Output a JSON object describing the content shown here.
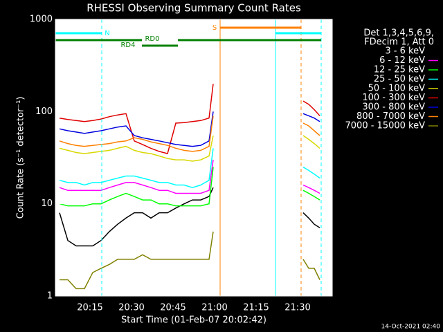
{
  "chart_data": {
    "type": "line",
    "title": "RHESSI Observing Summary Count Rates",
    "xlabel": "Start Time (01-Feb-07 20:02:42)",
    "ylabel": "Count Rate (s⁻¹ detector⁻¹)",
    "footer": "14-Oct-2021 02:40",
    "legend_title": [
      "Det 1,3,4,5,6,9,",
      "FDecim 1, Att 0"
    ],
    "yscale": "log",
    "xlim": [
      1202.5,
      1302.5
    ],
    "ylim": [
      1,
      1000
    ],
    "xticks": [
      {
        "value": 1215,
        "label": "20:15"
      },
      {
        "value": 1230,
        "label": "20:30"
      },
      {
        "value": 1245,
        "label": "20:45"
      },
      {
        "value": 1260,
        "label": "21:00"
      },
      {
        "value": 1275,
        "label": "21:15"
      },
      {
        "value": 1290,
        "label": "21:30"
      }
    ],
    "yticks": [
      1,
      10,
      100,
      1000
    ],
    "x": [
      1204,
      1207,
      1210,
      1213,
      1216,
      1219,
      1222,
      1225,
      1228,
      1231,
      1234,
      1237,
      1240,
      1243,
      1246,
      1249,
      1252,
      1255,
      1258,
      1259.5,
      1275,
      1292,
      1294,
      1296,
      1298
    ],
    "series": [
      {
        "name": "3 - 6 keV",
        "color": "#000000",
        "values": [
          8,
          4,
          3.5,
          3.5,
          3.5,
          4,
          5,
          6,
          7,
          8,
          8,
          7,
          8,
          8,
          9,
          10,
          11,
          11,
          12,
          15,
          null,
          8,
          7,
          6,
          5.5
        ]
      },
      {
        "name": "6 - 12 keV",
        "color": "#ff00ff",
        "values": [
          15,
          14,
          14,
          14,
          14,
          14,
          15,
          16,
          17,
          17,
          16,
          15,
          14,
          14,
          13,
          13,
          13,
          13,
          14,
          30,
          null,
          16,
          15,
          14,
          13
        ]
      },
      {
        "name": "12 - 25 keV",
        "color": "#00ff00",
        "values": [
          10,
          9.5,
          9.5,
          9.5,
          10,
          10,
          11,
          12,
          13,
          12,
          11,
          11,
          10,
          10,
          9.5,
          9.5,
          9.5,
          9.5,
          10,
          25,
          null,
          14,
          13,
          12,
          11
        ]
      },
      {
        "name": "25 - 50 keV",
        "color": "#00ffff",
        "values": [
          18,
          17,
          17,
          16,
          17,
          17,
          18,
          19,
          20,
          20,
          19,
          18,
          17,
          17,
          16,
          16,
          15,
          16,
          18,
          40,
          null,
          25,
          23,
          21,
          19
        ]
      },
      {
        "name": "50 - 100 keV",
        "color": "#d8d800",
        "values": [
          40,
          38,
          36,
          35,
          36,
          37,
          38,
          40,
          42,
          38,
          36,
          35,
          33,
          31,
          30,
          30,
          29,
          30,
          33,
          55,
          null,
          55,
          50,
          45,
          40
        ]
      },
      {
        "name": "100 - 300 keV",
        "color": "#e00000",
        "values": [
          85,
          82,
          80,
          78,
          80,
          83,
          88,
          92,
          95,
          48,
          44,
          40,
          37,
          35,
          75,
          76,
          78,
          80,
          85,
          200,
          null,
          130,
          120,
          105,
          90
        ]
      },
      {
        "name": "300 - 800 keV",
        "color": "#0000e0",
        "values": [
          65,
          62,
          60,
          58,
          60,
          62,
          65,
          68,
          70,
          55,
          52,
          50,
          48,
          46,
          44,
          43,
          42,
          43,
          48,
          100,
          null,
          95,
          90,
          85,
          78
        ]
      },
      {
        "name": "800 - 7000 keV",
        "color": "#ff8000",
        "values": [
          48,
          45,
          43,
          42,
          43,
          44,
          45,
          47,
          48,
          52,
          50,
          47,
          45,
          43,
          40,
          38,
          37,
          38,
          42,
          90,
          null,
          75,
          70,
          62,
          55
        ]
      },
      {
        "name": "7000 - 15000 keV",
        "color": "#808000",
        "values": [
          1.5,
          1.5,
          1.2,
          1.2,
          1.8,
          2,
          2.2,
          2.5,
          2.5,
          2.5,
          2.8,
          2.5,
          2.5,
          2.5,
          2.5,
          2.5,
          2.5,
          2.5,
          2.5,
          5,
          null,
          2.5,
          2,
          2,
          1.5
        ]
      }
    ],
    "vlines": [
      {
        "x": 1219.25,
        "color": "#00ffff",
        "dashed": true
      },
      {
        "x": 1282,
        "color": "#00ffff",
        "dashed": false
      },
      {
        "x": 1298.5,
        "color": "#00ffff",
        "dashed": true
      },
      {
        "x": 1262,
        "color": "#ff8000",
        "dashed": false
      },
      {
        "x": 1291.25,
        "color": "#ff8000",
        "dashed": true
      }
    ],
    "intervals": [
      {
        "label": "N",
        "x": [
          1202.5,
          1219.25
        ],
        "color": "#00ffff",
        "row": 1
      },
      {
        "x": [
          1282,
          1298.5
        ],
        "color": "#00ffff",
        "row": 1
      },
      {
        "label": "S",
        "x": [
          1262,
          1291.25
        ],
        "color": "#ff8000",
        "row": 0
      },
      {
        "label": "RD0",
        "x": [
          1202.5,
          1233.75
        ],
        "color": "#008000",
        "row": 2
      },
      {
        "x": [
          1246.75,
          1298.5
        ],
        "color": "#008000",
        "row": 2
      },
      {
        "label": "RD4",
        "x": [
          1233.75,
          1246.75
        ],
        "color": "#008000",
        "row": 3
      }
    ]
  }
}
